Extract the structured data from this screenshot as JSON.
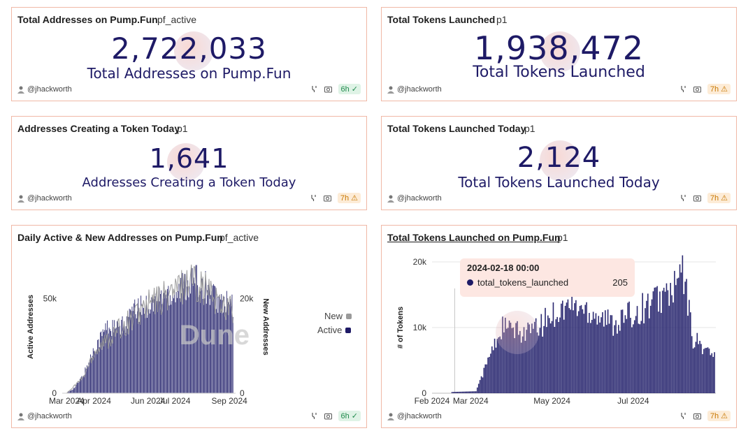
{
  "colors": {
    "navy": "#1e1a66",
    "bar": "#2a2870",
    "new_series": "#9a9a9a",
    "border": "#f0b8a6"
  },
  "cards": {
    "total_addresses": {
      "title": "Total Addresses on Pump.Fun",
      "tag": "pf_active",
      "value": "2,722,033",
      "label": "Total Addresses on Pump.Fun",
      "author": "@jhackworth",
      "badge": "6h",
      "badge_state": "ok"
    },
    "total_tokens": {
      "title": "Total Tokens Launched",
      "tag": "p1",
      "value": "1,938,472",
      "label": "Total Tokens Launched",
      "author": "@jhackworth",
      "badge": "7h",
      "badge_state": "warn"
    },
    "addresses_today": {
      "title": "Addresses Creating a Token Today",
      "tag": "p1",
      "value": "1,641",
      "label": "Addresses Creating a Token Today",
      "author": "@jhackworth",
      "badge": "7h",
      "badge_state": "warn"
    },
    "tokens_today": {
      "title": "Total Tokens Launched Today",
      "tag": "p1",
      "value": "2,124",
      "label": "Total Tokens Launched Today",
      "author": "@jhackworth",
      "badge": "7h",
      "badge_state": "warn"
    },
    "daily_active": {
      "title": "Daily Active & New Addresses on Pump.Fun",
      "tag": "pf_active",
      "author": "@jhackworth",
      "badge": "6h",
      "badge_state": "ok",
      "watermark_text": "Dune"
    },
    "tokens_chart": {
      "title": "Total Tokens Launched on Pump.Fun",
      "tag": "p1",
      "author": "@jhackworth",
      "badge": "7h",
      "badge_state": "warn",
      "tooltip": {
        "date": "2024-02-18 00:00",
        "series": "total_tokens_launched",
        "value": "205"
      }
    }
  },
  "chart_data": [
    {
      "type": "bar",
      "title": "Daily Active & New Addresses on Pump.Fun",
      "ylabel": "Active Addresses",
      "y2label": "New Addresses",
      "xlim": [
        "2024-02-25",
        "2024-09-08"
      ],
      "x_ticks": [
        "Mar 2024",
        "Apr 2024",
        "Jun 2024",
        "Jul 2024",
        "Sep 2024"
      ],
      "y_ticks": [
        {
          "value": 0,
          "label": "0"
        },
        {
          "value": 50000,
          "label": "50k"
        }
      ],
      "y2_ticks": [
        {
          "value": 0,
          "label": "0"
        },
        {
          "value": 20000,
          "label": "20k"
        }
      ],
      "ylim": [
        0,
        70000
      ],
      "y2lim": [
        0,
        28000
      ],
      "legend": {
        "placement": "right",
        "items": [
          {
            "name": "New",
            "color": "#9a9a9a"
          },
          {
            "name": "Active",
            "color": "#1e1a66"
          }
        ]
      },
      "series": [
        {
          "name": "Active",
          "knots": [
            {
              "x": "2024-03-01",
              "y": 0
            },
            {
              "x": "2024-03-10",
              "y": 3000
            },
            {
              "x": "2024-03-20",
              "y": 10000
            },
            {
              "x": "2024-04-01",
              "y": 24000
            },
            {
              "x": "2024-04-15",
              "y": 36000
            },
            {
              "x": "2024-05-01",
              "y": 35000
            },
            {
              "x": "2024-05-15",
              "y": 44000
            },
            {
              "x": "2024-06-01",
              "y": 48000
            },
            {
              "x": "2024-06-20",
              "y": 54000
            },
            {
              "x": "2024-07-05",
              "y": 56000
            },
            {
              "x": "2024-07-20",
              "y": 62000
            },
            {
              "x": "2024-08-05",
              "y": 58000
            },
            {
              "x": "2024-08-20",
              "y": 50000
            },
            {
              "x": "2024-09-05",
              "y": 47000
            }
          ]
        },
        {
          "name": "New",
          "knots": [
            {
              "x": "2024-03-01",
              "y": 0
            },
            {
              "x": "2024-03-20",
              "y": 3500
            },
            {
              "x": "2024-04-01",
              "y": 9000
            },
            {
              "x": "2024-05-01",
              "y": 14000
            },
            {
              "x": "2024-06-01",
              "y": 19000
            },
            {
              "x": "2024-07-01",
              "y": 22000
            },
            {
              "x": "2024-07-20",
              "y": 25000
            },
            {
              "x": "2024-08-20",
              "y": 20000
            },
            {
              "x": "2024-09-05",
              "y": 18000
            }
          ]
        }
      ]
    },
    {
      "type": "bar",
      "title": "Total Tokens Launched on Pump.Fun",
      "ylabel": "# of Tokens",
      "xlim": [
        "2024-02-01",
        "2024-09-01"
      ],
      "x_ticks": [
        "Feb 2024",
        "Mar 2024",
        "May 2024",
        "Jul 2024"
      ],
      "y_ticks": [
        {
          "value": 0,
          "label": "0"
        },
        {
          "value": 10000,
          "label": "10k"
        },
        {
          "value": 20000,
          "label": "20k"
        }
      ],
      "ylim": [
        0,
        20000
      ],
      "series": [
        {
          "name": "total_tokens_launched",
          "knots": [
            {
              "x": "2024-02-01",
              "y": 0
            },
            {
              "x": "2024-02-18",
              "y": 205
            },
            {
              "x": "2024-03-05",
              "y": 300
            },
            {
              "x": "2024-03-15",
              "y": 6000
            },
            {
              "x": "2024-03-25",
              "y": 11000
            },
            {
              "x": "2024-04-05",
              "y": 10000
            },
            {
              "x": "2024-04-20",
              "y": 10500
            },
            {
              "x": "2024-05-01",
              "y": 13000
            },
            {
              "x": "2024-05-15",
              "y": 14500
            },
            {
              "x": "2024-06-01",
              "y": 13500
            },
            {
              "x": "2024-06-15",
              "y": 11500
            },
            {
              "x": "2024-07-01",
              "y": 13000
            },
            {
              "x": "2024-07-15",
              "y": 15000
            },
            {
              "x": "2024-08-01",
              "y": 17000
            },
            {
              "x": "2024-08-07",
              "y": 20500
            },
            {
              "x": "2024-08-15",
              "y": 9000
            },
            {
              "x": "2024-08-31",
              "y": 6000
            }
          ]
        }
      ]
    }
  ]
}
